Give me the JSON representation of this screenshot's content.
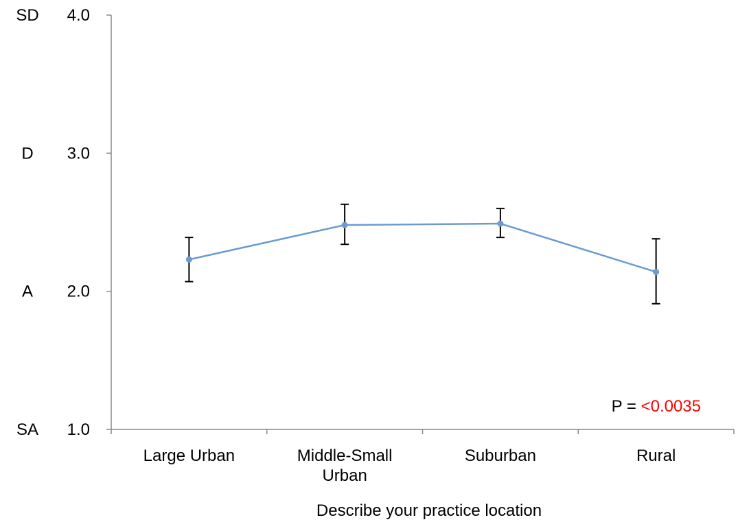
{
  "chart_data": {
    "type": "line",
    "categories": [
      [
        "Large Urban"
      ],
      [
        "Middle-Small",
        "Urban"
      ],
      [
        "Suburban"
      ],
      [
        "Rural"
      ]
    ],
    "series": [
      {
        "values": [
          2.23,
          2.48,
          2.49,
          2.14
        ],
        "error_low": [
          2.07,
          2.34,
          2.39,
          1.91
        ],
        "error_high": [
          2.39,
          2.63,
          2.6,
          2.38
        ]
      }
    ],
    "ylim": [
      1.0,
      4.0
    ],
    "yticks": [
      "1.0",
      "2.0",
      "3.0",
      "4.0"
    ],
    "ytick_values": [
      1.0,
      2.0,
      3.0,
      4.0
    ],
    "scale_labels": [
      "SA",
      "A",
      "D",
      "SD"
    ],
    "xlabel": "Describe your practice location",
    "ylabel": "",
    "annotation": {
      "prefix": "P = ",
      "value": "<0.0035",
      "value_color": "#ff0000"
    },
    "line_color": "#6b9bd1",
    "axis_color": "#888888",
    "grid": false
  }
}
